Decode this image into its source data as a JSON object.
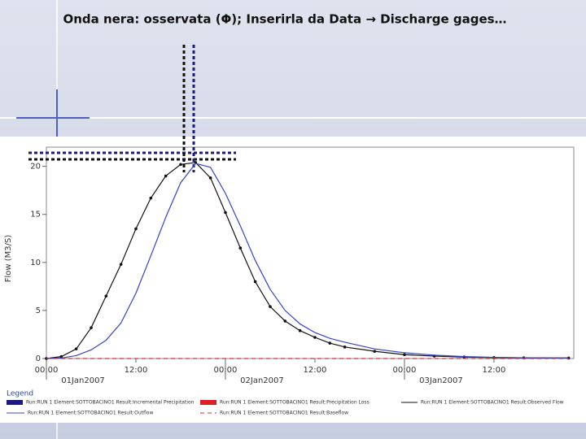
{
  "chart_data": {
    "type": "line",
    "title": "Onda nera: osservata (Φ); Inserirla da Data → Discharge gages…",
    "y_label": "Flow (M3/S)",
    "x": [
      0,
      2,
      4,
      6,
      8,
      10,
      12,
      14,
      16,
      18,
      20,
      22,
      24,
      26,
      28,
      30,
      32,
      34,
      36,
      38,
      40,
      44,
      48,
      52,
      56,
      60,
      64,
      70
    ],
    "xlim": [
      0,
      70.7
    ],
    "xticks": [
      {
        "value": 0,
        "label": "00:00",
        "date": "01Jan2007"
      },
      {
        "value": 12,
        "label": "12:00"
      },
      {
        "value": 24,
        "label": "00:00",
        "date": "02Jan2007"
      },
      {
        "value": 36,
        "label": "12:00"
      },
      {
        "value": 48,
        "label": "00:00",
        "date": "03Jan2007"
      },
      {
        "value": 60,
        "label": "12:00"
      }
    ],
    "ylim": [
      0,
      22
    ],
    "yticks": [
      0,
      5,
      10,
      15,
      20
    ],
    "legend_title": "Legend",
    "legend_only": [
      {
        "name": "Run:RUN 1 Element:SOTTOBACINO1 Result:Incremental Precipitation",
        "color": "#1a1a80"
      },
      {
        "name": "Run:RUN 1 Element:SOTTOBACINO1 Result:Precipitation Loss",
        "color": "#e02020"
      }
    ],
    "series": [
      {
        "name": "Run:RUN 1 Element:SOTTOBACINO1 Result:Observed Flow",
        "color": "#111111",
        "style": "dotted",
        "values": [
          0,
          0.2,
          1.0,
          3.2,
          6.5,
          9.8,
          13.5,
          16.7,
          19.0,
          20.2,
          20.4,
          18.8,
          15.2,
          11.5,
          8.0,
          5.4,
          3.9,
          2.9,
          2.2,
          1.6,
          1.2,
          0.75,
          0.4,
          0.25,
          0.15,
          0.1,
          0.07,
          0.05
        ]
      },
      {
        "name": "Run:RUN 1 Element:SOTTOBACINO1 Result:Outflow",
        "color": "#3344cc",
        "style": "solid",
        "values": [
          0,
          0.05,
          0.3,
          0.9,
          1.9,
          3.7,
          6.8,
          10.7,
          14.7,
          18.3,
          20.3,
          19.9,
          17.2,
          13.8,
          10.2,
          7.2,
          5.0,
          3.6,
          2.7,
          2.1,
          1.7,
          1.0,
          0.6,
          0.35,
          0.2,
          0.12,
          0.08,
          0.05
        ]
      },
      {
        "name": "Run:RUN 1 Element:SOTTOBACINO1 Result:Baseflow",
        "color": "#cc3333",
        "style": "dashed",
        "values": [
          0,
          0,
          0,
          0,
          0,
          0,
          0,
          0,
          0,
          0,
          0,
          0,
          0,
          0,
          0,
          0,
          0,
          0,
          0,
          0,
          0,
          0,
          0,
          0,
          0,
          0,
          0,
          0
        ]
      }
    ]
  }
}
